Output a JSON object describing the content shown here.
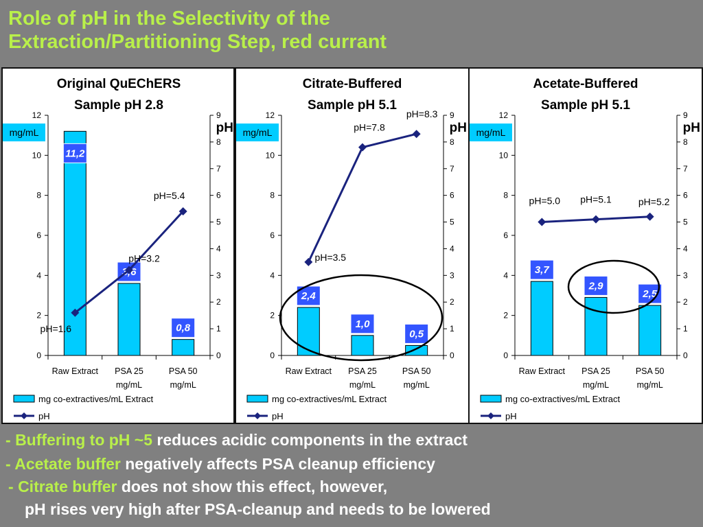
{
  "slide": {
    "title_line1": "Role of pH in the Selectivity of the",
    "title_line2": "Extraction/Partitioning Step, red currant"
  },
  "colors": {
    "title": "#b9f04a",
    "bar_fill": "#00ccff",
    "line": "#1a237e",
    "label_box": "#3355ff",
    "background": "#808080"
  },
  "bullets": [
    {
      "prefix": "- ",
      "highlight": "Buffering to pH ~5",
      "rest": " reduces acidic components in the extract"
    },
    {
      "prefix": "- ",
      "highlight": "Acetate buffer",
      "rest": " negatively affects PSA cleanup efficiency"
    },
    {
      "prefix": "- ",
      "highlight": "Citrate buffer",
      "rest": " does not show this effect, however,"
    },
    {
      "prefix": "",
      "highlight": "",
      "rest": "pH rises very high after PSA-cleanup and needs to be lowered"
    }
  ],
  "chart_data": [
    {
      "type": "bar",
      "title_line1": "Original QuEChERS",
      "title_line2": "Sample pH 2.8",
      "categories": [
        [
          "Raw Extract"
        ],
        [
          "PSA 25",
          "mg/mL"
        ],
        [
          "PSA 50",
          "mg/mL"
        ]
      ],
      "bar_series": {
        "name": "mg co-extractives/mL Extract",
        "values": [
          11.2,
          3.6,
          0.8
        ],
        "labels": [
          "11,2",
          "3,6",
          "0,8"
        ]
      },
      "line_series": {
        "name": "pH",
        "values": [
          1.6,
          3.2,
          5.4
        ],
        "labels": [
          "pH=1.6",
          "pH=3.2",
          "pH=5.4"
        ]
      },
      "y_left": {
        "label": "mg/mL",
        "range": [
          0,
          12
        ],
        "ticks": [
          "0",
          "2",
          "4",
          "6",
          "8",
          "10",
          "12"
        ]
      },
      "y_right": {
        "label": "pH",
        "range": [
          0,
          9
        ],
        "ticks": [
          "0",
          "1",
          "2",
          "3",
          "4",
          "5",
          "6",
          "7",
          "8",
          "9"
        ]
      },
      "ellipse": false
    },
    {
      "type": "bar",
      "title_line1": "Citrate-Buffered",
      "title_line2": "Sample pH 5.1",
      "categories": [
        [
          "Raw Extract"
        ],
        [
          "PSA 25",
          "mg/mL"
        ],
        [
          "PSA 50",
          "mg/mL"
        ]
      ],
      "bar_series": {
        "name": "mg co-extractives/mL Extract",
        "values": [
          2.4,
          1.0,
          0.5
        ],
        "labels": [
          "2,4",
          "1,0",
          "0,5"
        ]
      },
      "line_series": {
        "name": "pH",
        "values": [
          3.5,
          7.8,
          8.3
        ],
        "labels": [
          "pH=3.5",
          "pH=7.8",
          "pH=8.3"
        ]
      },
      "y_left": {
        "label": "mg/mL",
        "range": [
          0,
          12
        ],
        "ticks": [
          "0",
          "2",
          "4",
          "6",
          "8",
          "10",
          "12"
        ]
      },
      "y_right": {
        "label": "pH",
        "range": [
          0,
          9
        ],
        "ticks": [
          "0",
          "1",
          "2",
          "3",
          "4",
          "5",
          "6",
          "7",
          "8",
          "9"
        ]
      },
      "ellipse": true
    },
    {
      "type": "bar",
      "title_line1": "Acetate-Buffered",
      "title_line2": "Sample pH 5.1",
      "categories": [
        [
          "Raw Extract"
        ],
        [
          "PSA 25",
          "mg/mL"
        ],
        [
          "PSA 50",
          "mg/mL"
        ]
      ],
      "bar_series": {
        "name": "mg co-extractives/mL Extract",
        "values": [
          3.7,
          2.9,
          2.5
        ],
        "labels": [
          "3,7",
          "2,9",
          "2,5"
        ]
      },
      "line_series": {
        "name": "pH",
        "values": [
          5.0,
          5.1,
          5.2
        ],
        "labels": [
          "pH=5.0",
          "pH=5.1",
          "pH=5.2"
        ]
      },
      "y_left": {
        "label": "mg/mL",
        "range": [
          0,
          12
        ],
        "ticks": [
          "0",
          "2",
          "4",
          "6",
          "8",
          "10",
          "12"
        ]
      },
      "y_right": {
        "label": "pH",
        "range": [
          0,
          9
        ],
        "ticks": [
          "0",
          "1",
          "2",
          "3",
          "4",
          "5",
          "6",
          "7",
          "8",
          "9"
        ]
      },
      "ellipse": true
    }
  ]
}
